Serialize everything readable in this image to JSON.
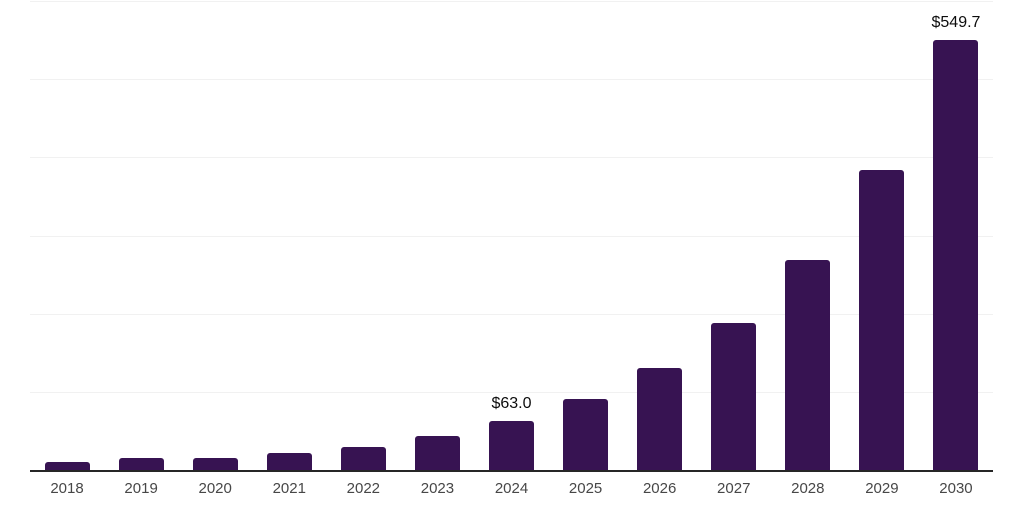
{
  "chart_data": {
    "type": "bar",
    "title": "",
    "xlabel": "",
    "ylabel": "",
    "categories": [
      "2018",
      "2019",
      "2020",
      "2021",
      "2022",
      "2023",
      "2024",
      "2025",
      "2026",
      "2027",
      "2028",
      "2029",
      "2030"
    ],
    "values": [
      10.5,
      15.0,
      16.0,
      22.0,
      29.0,
      43.5,
      63.0,
      90.5,
      131.0,
      188.0,
      269.0,
      384.0,
      549.7
    ],
    "value_labels": {
      "2024": "$63.0",
      "2030": "$549.7"
    },
    "ylim": [
      0,
      600
    ],
    "gridline_values": [
      100,
      200,
      300,
      400,
      500,
      600
    ],
    "grid": true,
    "legend_position": "none",
    "colors": {
      "bar": "#371352",
      "gridline": "#f1f1f1",
      "axis_line": "#262626",
      "tick_label": "#474747",
      "data_label": "#0d0d0d",
      "background": "#ffffff"
    }
  }
}
